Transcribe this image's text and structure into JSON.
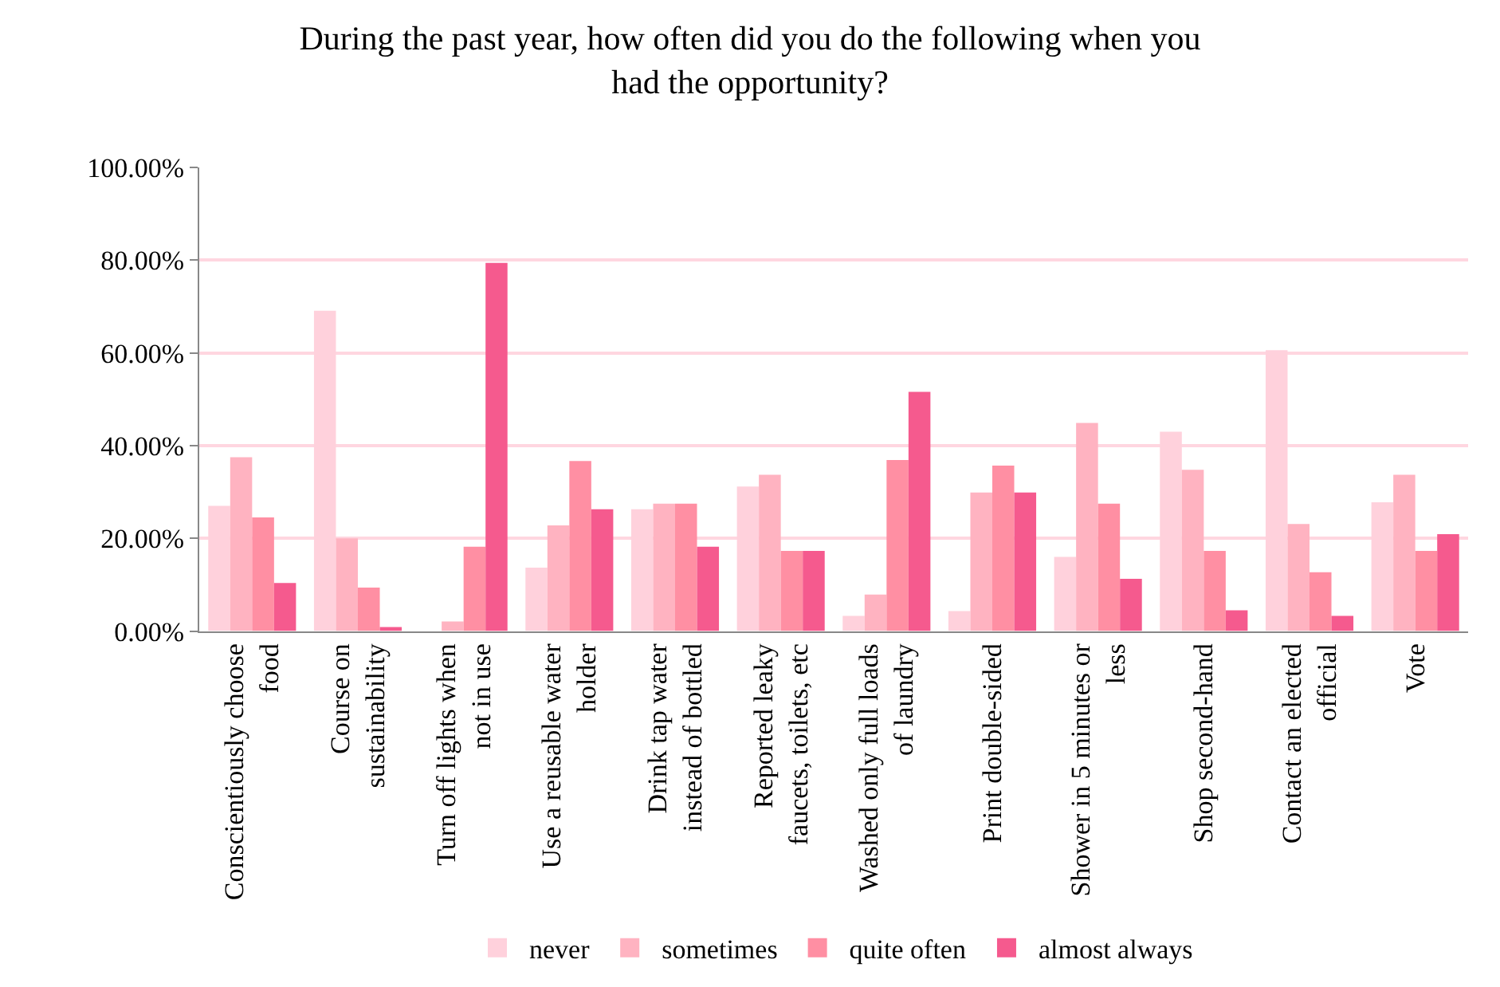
{
  "chart_data": {
    "type": "bar",
    "title": "During the past year, how often did you do the following when you had the opportunity?",
    "categories": [
      "Conscientiously choose food",
      "Course on sustainability",
      "Turn off lights when not in use",
      "Use a reusable water holder",
      "Drink tap water instead of bottled",
      "Reported leaky faucets, toilets, etc",
      "Washed only full loads of laundry",
      "Print double-sided",
      "Shower in 5 minutes or less",
      "Shop second-hand",
      "Contact an elected official",
      "Vote"
    ],
    "series": [
      {
        "name": "never",
        "color": "#ffd1dc",
        "values": [
          27.0,
          69.1,
          null,
          13.7,
          26.3,
          31.2,
          3.3,
          4.3,
          16.0,
          43.0,
          60.6,
          27.8
        ]
      },
      {
        "name": "sometimes",
        "color": "#ffb3c1",
        "values": [
          37.5,
          20.0,
          2.1,
          22.8,
          27.5,
          33.7,
          7.9,
          29.9,
          44.9,
          34.8,
          23.1,
          33.7
        ]
      },
      {
        "name": "quite often",
        "color": "#ff8fa3",
        "values": [
          24.5,
          9.4,
          18.2,
          36.7,
          27.5,
          17.3,
          36.9,
          35.7,
          27.5,
          17.3,
          12.7,
          17.3
        ]
      },
      {
        "name": "almost always",
        "color": "#f55a8e",
        "values": [
          10.4,
          0.9,
          79.4,
          26.3,
          18.2,
          17.3,
          51.6,
          29.9,
          11.3,
          4.5,
          3.3,
          20.9
        ]
      }
    ],
    "ylim": [
      0,
      100
    ],
    "yticks": [
      {
        "value": 0,
        "label": "0.00%"
      },
      {
        "value": 20,
        "label": "20.00%"
      },
      {
        "value": 40,
        "label": "40.00%"
      },
      {
        "value": 60,
        "label": "60.00%"
      },
      {
        "value": 80,
        "label": "80.00%"
      },
      {
        "value": 100,
        "label": "100.00%"
      }
    ],
    "grid": "y",
    "legend": "bottom"
  }
}
